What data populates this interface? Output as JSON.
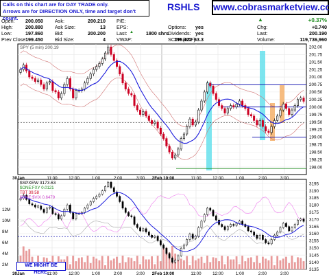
{
  "header": {
    "note_line1": "Calls on this chart are for DAY TRADE only.",
    "note_line2": "Arrows are for DIRECTION ONLY, time and target don't count.",
    "ticker": "RSHLS",
    "site": "www.cobrasmarketview.com"
  },
  "quote": {
    "open_label": "Open:",
    "open": "200.050",
    "high_label": "High:",
    "high": "200.880",
    "low_label": "Low:",
    "low": "197.860",
    "prev_close_label": "Prev Close:",
    "prev_close": "199.450",
    "ask_label": "Ask:",
    "ask": "200.210",
    "ask_size_label": "Ask Size:",
    "ask_size": "13",
    "bid_label": "Bid:",
    "bid": "200.200",
    "bid_size_label": "Bid Size:",
    "bid_size": "4",
    "pe_label": "P/E:",
    "pe": "",
    "eps_label": "EPS:",
    "eps": "",
    "last_label": "Last:",
    "last_size": "1800 shrs",
    "vwap_label": "VWAP:",
    "vwap": "199.422",
    "options_label": "Options:",
    "options": "yes",
    "dividends_label": "Dividends:",
    "dividends": "yes",
    "sctr_label": "SCTR (ETF):",
    "sctr": "63.3",
    "pct_change": "+0.37%",
    "chg_label": "Chg:",
    "chg": "+0.740",
    "last2_label": "Last:",
    "last": "200.190",
    "volume_label": "Volume:",
    "volume": "119,736,960"
  },
  "warning": "WE MIGHT BE HERE.",
  "colors": {
    "up": "#000000",
    "down": "#cc0022",
    "ma": "#1a1adc",
    "band": "#d07070",
    "cyan": "#66e0ec",
    "orange": "#f5b06a",
    "hline": "#0000aa",
    "green": "#1a8a1a",
    "pink": "#f08cf0",
    "vol": "#e89a9a"
  },
  "chart_data": [
    {
      "type": "candlestick",
      "title": "SPY (5 min) 200.19",
      "ylim": [
        197.75,
        202.1
      ],
      "y_ticks": [
        202.0,
        201.75,
        201.5,
        201.25,
        201.0,
        200.75,
        200.5,
        200.25,
        200.0,
        199.75,
        199.5,
        199.25,
        199.0,
        198.75,
        198.5,
        198.25,
        198.0
      ],
      "y_tick_labels": [
        "202.00",
        "201.75",
        "201.50",
        "201.25",
        "201.00",
        "200.75",
        "200.50",
        "200.25",
        "200.00",
        "199.75",
        "199.50",
        "199.25",
        "199.00",
        "198.75",
        "198.50",
        "198.25",
        "198.00"
      ],
      "x_tick_labels": [
        "30Jan",
        "11:00",
        "12:00",
        "1:00",
        "2:00",
        "3:00",
        "2Feb 10:00",
        "11:00",
        "12:00",
        "1:00",
        "2:00",
        "3:00"
      ],
      "close": [
        201.25,
        201.4,
        201.2,
        201.0,
        200.95,
        200.85,
        200.9,
        200.75,
        200.6,
        200.8,
        200.85,
        200.55,
        200.5,
        200.3,
        200.45,
        200.75,
        200.95,
        200.6,
        200.3,
        200.55,
        200.55,
        200.6,
        200.8,
        200.95,
        201.1,
        201.25,
        201.35,
        201.45,
        201.6,
        201.8,
        202.0,
        201.75,
        201.55,
        201.35,
        201.1,
        200.8,
        200.6,
        200.45,
        200.4,
        200.05,
        199.9,
        199.75,
        199.85,
        199.7,
        199.55,
        199.45,
        199.5,
        199.3,
        199.1,
        198.95,
        198.7,
        198.5,
        198.3,
        198.4,
        198.6,
        198.95,
        199.1,
        199.35,
        199.6,
        199.4,
        199.5,
        199.9,
        200.2,
        200.5,
        200.8,
        200.7,
        200.45,
        200.25,
        200.05,
        199.95,
        199.8,
        199.95,
        200.05,
        200.0,
        200.1,
        200.2,
        200.05,
        199.95,
        199.75,
        199.7,
        199.55,
        199.4,
        199.55,
        199.35,
        199.2,
        199.15,
        199.35,
        199.55,
        199.7,
        199.9,
        200.1,
        199.95,
        199.75,
        199.9,
        200.05,
        200.25,
        200.3,
        200.19
      ],
      "series_ma": "20 period moving average (blue line)",
      "horizontal_levels": [
        200.75,
        200.0,
        199.48,
        199.0,
        197.95
      ]
    },
    {
      "type": "line",
      "title": "$SPXEW 3173.63",
      "legend": [
        "$ONE:FXY 0.0121",
        "TBT 39.58",
        "$ONE:$VIX 0.6479"
      ],
      "ylim": [
        3135,
        3198
      ],
      "y_ticks": [
        3195,
        3190,
        3185,
        3180,
        3175,
        3170,
        3165,
        3160,
        3155,
        3150,
        3145,
        3140,
        3135
      ],
      "y_tick_labels": [
        "3195",
        "3190",
        "3185",
        "3180",
        "3175",
        "3170",
        "3165",
        "3160",
        "3155",
        "3150",
        "3145",
        "3140",
        "3135"
      ],
      "volume_ticks": [
        "12M",
        "10M",
        "8M",
        "6M",
        "4M",
        "2M"
      ],
      "x_tick_labels": [
        "30Jan",
        "11:00",
        "12:00",
        "1:00",
        "2:00",
        "3:00",
        "2Feb 10:00",
        "11:00",
        "12:00",
        "1:00",
        "2:00",
        "3:00"
      ]
    }
  ]
}
